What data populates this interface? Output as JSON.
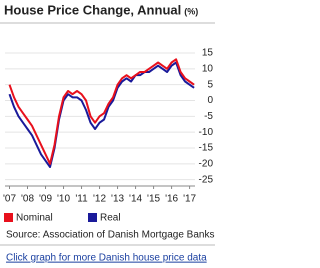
{
  "chart_data": {
    "type": "line",
    "title": "House Price Change, Annual",
    "unit": "(%)",
    "x": [
      2007,
      2007.25,
      2007.5,
      2007.75,
      2008,
      2008.25,
      2008.5,
      2008.75,
      2009,
      2009.25,
      2009.5,
      2009.75,
      2010,
      2010.25,
      2010.5,
      2010.75,
      2011,
      2011.25,
      2011.5,
      2011.75,
      2012,
      2012.25,
      2012.5,
      2012.75,
      2013,
      2013.25,
      2013.5,
      2013.75,
      2014,
      2014.25,
      2014.5,
      2014.75,
      2015,
      2015.25,
      2015.5,
      2015.75,
      2016,
      2016.25,
      2016.5,
      2016.75,
      2017,
      2017.25
    ],
    "series": [
      {
        "name": "Nominal",
        "color": "#e8101c",
        "values": [
          5,
          1,
          -2,
          -4,
          -6,
          -8,
          -11,
          -14,
          -17,
          -20,
          -14,
          -5,
          1,
          3,
          2,
          3,
          2,
          0,
          -5,
          -7,
          -5,
          -4,
          -1,
          1,
          5,
          7,
          8,
          7,
          8,
          9,
          9,
          10,
          11,
          12,
          11,
          10,
          12,
          13,
          9,
          7,
          6,
          5
        ]
      },
      {
        "name": "Real",
        "color": "#1a1a9a",
        "values": [
          2,
          -2,
          -5,
          -7,
          -9,
          -11,
          -14,
          -17,
          -19,
          -21,
          -15,
          -6,
          0,
          2,
          1,
          1,
          0,
          -3,
          -7,
          -9,
          -7,
          -6,
          -2,
          0,
          4,
          6,
          7,
          6,
          8,
          8,
          9,
          9,
          10,
          11,
          10,
          9,
          11,
          12,
          8,
          6,
          5,
          4
        ]
      }
    ],
    "xlim": [
      2006.75,
      2017.3
    ],
    "xticks": [
      {
        "value": 2007,
        "label": "'07"
      },
      {
        "value": 2008,
        "label": "'08"
      },
      {
        "value": 2009,
        "label": "'09"
      },
      {
        "value": 2010,
        "label": "'10"
      },
      {
        "value": 2011,
        "label": "'11"
      },
      {
        "value": 2012,
        "label": "'12"
      },
      {
        "value": 2013,
        "label": "'13"
      },
      {
        "value": 2014,
        "label": "'14"
      },
      {
        "value": 2015,
        "label": "'15"
      },
      {
        "value": 2016,
        "label": "'16"
      },
      {
        "value": 2017,
        "label": "'17"
      }
    ],
    "ylim": [
      -27,
      18
    ],
    "yticks": [
      15,
      10,
      5,
      0,
      -5,
      -10,
      -15,
      -20,
      -25
    ],
    "grid": true,
    "source": "Source: Association of Danish Mortgage Banks"
  },
  "link": "Click graph for more Danish house price data"
}
